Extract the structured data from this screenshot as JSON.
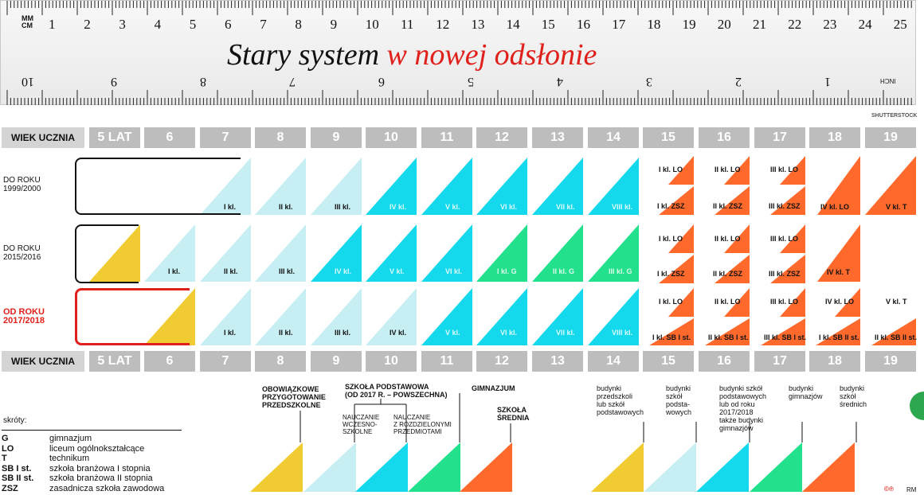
{
  "title": {
    "part1": "Stary system",
    "part2": "w nowej odsłonie"
  },
  "ruler": {
    "top_unit": "MM\nCM",
    "top_numbers": [
      "1",
      "2",
      "3",
      "4",
      "5",
      "6",
      "7",
      "8",
      "9",
      "10",
      "11",
      "12",
      "13",
      "14",
      "15",
      "16",
      "17",
      "18",
      "19",
      "20",
      "21",
      "22",
      "23",
      "24",
      "25"
    ],
    "bottom_numbers": [
      "10",
      "9",
      "8",
      "7",
      "6",
      "5",
      "4",
      "3",
      "2",
      "1"
    ],
    "bottom_unit": "INCH"
  },
  "credit": "SHUTTERSTOCK",
  "age_header": {
    "label": "WIEK UCZNIA",
    "ages": [
      "5 LAT",
      "6",
      "7",
      "8",
      "9",
      "10",
      "11",
      "12",
      "13",
      "14",
      "15",
      "16",
      "17",
      "18",
      "19"
    ]
  },
  "rows": [
    {
      "label": "DO ROKU\n1999/2000"
    },
    {
      "label": "DO ROKU\n2015/2016"
    },
    {
      "label": "OD ROKU\n2017/2018"
    }
  ],
  "row1": {
    "primary": [
      "I kl.",
      "II kl.",
      "III kl.",
      "IV kl.",
      "V kl.",
      "VI kl.",
      "VII kl.",
      "VIII kl."
    ],
    "lo": [
      "I kl. LO",
      "II kl. LO",
      "III kl. LO"
    ],
    "zsz": [
      "I kl. ZSZ",
      "II kl. ZSZ",
      "III kl. ZSZ"
    ],
    "lo4": "IV kl. LO",
    "t5": "V kl. T"
  },
  "row2": {
    "primary": [
      "I kl.",
      "II kl.",
      "III kl.",
      "IV kl.",
      "V kl.",
      "VI kl."
    ],
    "gim": [
      "I kl. G",
      "II kl. G",
      "III kl. G"
    ],
    "lo": [
      "I kl. LO",
      "II kl. LO",
      "III kl. LO"
    ],
    "zsz": [
      "I kl. ZSZ",
      "II kl. ZSZ",
      "III kl. ZSZ"
    ],
    "t4": "IV kl. T"
  },
  "row3": {
    "primary": [
      "I kl.",
      "II kl.",
      "III kl.",
      "IV kl.",
      "V kl.",
      "VI kl.",
      "VII kl.",
      "VIII kl."
    ],
    "lo": [
      "I kl. LO",
      "II kl. LO",
      "III kl. LO",
      "IV kl. LO"
    ],
    "sb": [
      "I kl. SB I st.",
      "II kl. SB I st.",
      "III kl. SB I st.",
      "I kl. SB II st.",
      "II kl. SB II st."
    ],
    "t5": "V kl. T"
  },
  "legend": {
    "preschool": "OBOWIĄZKOWE\nPRZYGOTOWANIE\nPRZEDSZKOLNE",
    "primary": "SZKOŁA PODSTAWOWA\n(OD 2017 R. – POWSZECHNA)",
    "early": "NAUCZANIE\nWCZESNO-\nSZKOLNE",
    "subjects": "NAUCZANIE\nZ ROZDZIELONYMI\nPRZEDMIOTAMI",
    "gim": "GIMNAZJUM",
    "secondary": "SZKOŁA\nŚREDNIA"
  },
  "buildings": [
    "budynki\nprzedszkoli\nlub szkół\npodstawowych",
    "budynki\nszkół\npodsta-\nwowych",
    "budynki szkół\npodstawowych\nlub od roku\n2017/2018\ntakże budynki\ngimnazjów",
    "budynki\ngimnazjów",
    "budynki\nszkół\nśrednich"
  ],
  "abbreviations": {
    "title": "skróty:",
    "items": [
      {
        "code": "G",
        "text": "gimnazjum"
      },
      {
        "code": "LO",
        "text": "liceum ogólnokształcące"
      },
      {
        "code": "T",
        "text": "technikum"
      },
      {
        "code": "SB I st.",
        "text": "szkoła branżowa I stopnia"
      },
      {
        "code": "SB II st.",
        "text": "szkoła branżowa II stopnia"
      },
      {
        "code": "ZSZ",
        "text": "zasadnicza szkoła zawodowa"
      }
    ]
  },
  "footer": {
    "copyright": "©℗",
    "initials": "RM"
  },
  "colors": {
    "yellow": "#f0cc32",
    "lightcyan": "#c6eef3",
    "cyan": "#14d8ec",
    "green": "#22e08c",
    "orange": "#ff6a2c",
    "red": "#e0201a"
  }
}
